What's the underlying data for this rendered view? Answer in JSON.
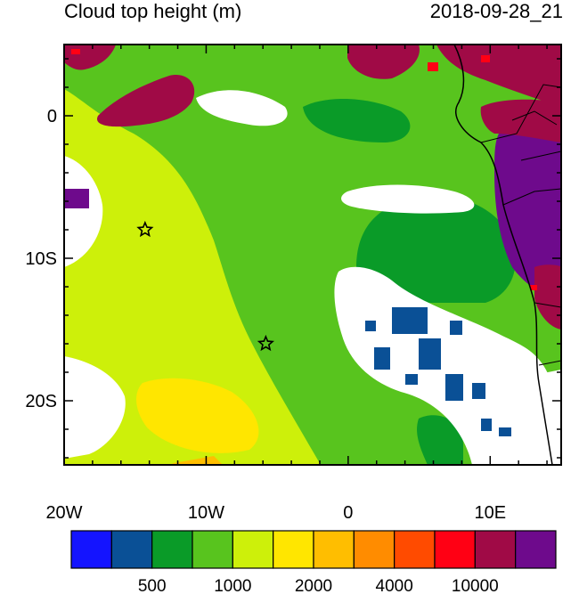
{
  "header": {
    "title": "Cloud top height (m)",
    "timestamp": "2018-09-28_21"
  },
  "map": {
    "lon_range": [
      -20,
      15
    ],
    "lat_range": [
      -24.5,
      5
    ],
    "x_ticks": [
      {
        "value": -20,
        "label": "20W"
      },
      {
        "value": -10,
        "label": "10W"
      },
      {
        "value": 0,
        "label": "0"
      },
      {
        "value": 10,
        "label": "10E"
      }
    ],
    "y_ticks": [
      {
        "value": 0,
        "label": "0"
      },
      {
        "value": -10,
        "label": "10S"
      },
      {
        "value": -20,
        "label": "20S"
      }
    ],
    "markers": [
      {
        "name": "star-marker-1",
        "lon": -14.3,
        "lat": -8.0,
        "symbol": "star"
      },
      {
        "name": "star-marker-2",
        "lon": -5.8,
        "lat": -16.0,
        "symbol": "star"
      }
    ]
  },
  "colorbar": {
    "colors": [
      "#1414ff",
      "#0a5096",
      "#0a9b28",
      "#58c41e",
      "#cdf00a",
      "#ffe600",
      "#ffbe00",
      "#ff8c00",
      "#ff4b00",
      "#ff0014",
      "#a00a46",
      "#6e0a8c"
    ],
    "labels": [
      {
        "after_index": 1,
        "text": "500"
      },
      {
        "after_index": 3,
        "text": "1000"
      },
      {
        "after_index": 5,
        "text": "2000"
      },
      {
        "after_index": 7,
        "text": "4000"
      },
      {
        "after_index": 9,
        "text": "10000"
      }
    ]
  }
}
